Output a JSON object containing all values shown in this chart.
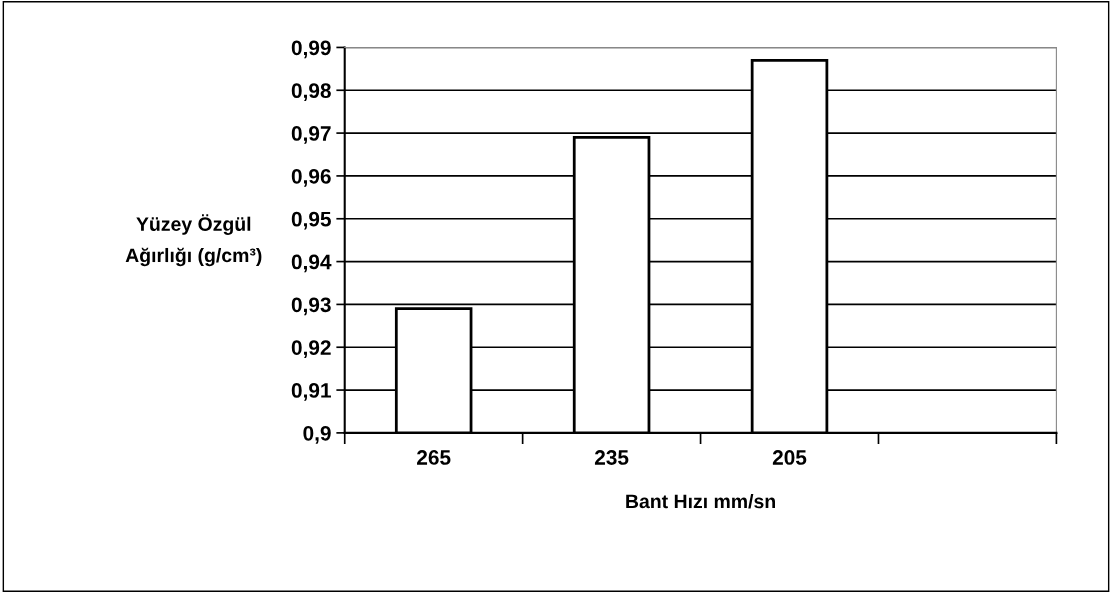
{
  "chart_data": {
    "type": "bar",
    "xlabel": "Bant Hızı mm/sn",
    "ylabel": "Yüzey Özgül\nAğırlığı (g/cm³)",
    "categories": [
      "265",
      "235",
      "205",
      null
    ],
    "values": [
      0.929,
      0.969,
      0.987,
      null
    ],
    "color": "#ffffff",
    "ylim": [
      0.9,
      0.99
    ],
    "yticks": [
      {
        "value": 0.9,
        "label": "0,9"
      },
      {
        "value": 0.91,
        "label": "0,91"
      },
      {
        "value": 0.92,
        "label": "0,92"
      },
      {
        "value": 0.93,
        "label": "0,93"
      },
      {
        "value": 0.94,
        "label": "0,94"
      },
      {
        "value": 0.95,
        "label": "0,95"
      },
      {
        "value": 0.96,
        "label": "0,96"
      },
      {
        "value": 0.97,
        "label": "0,97"
      },
      {
        "value": 0.98,
        "label": "0,98"
      },
      {
        "value": 0.99,
        "label": "0,99"
      }
    ],
    "grid": "y",
    "legend": false
  }
}
